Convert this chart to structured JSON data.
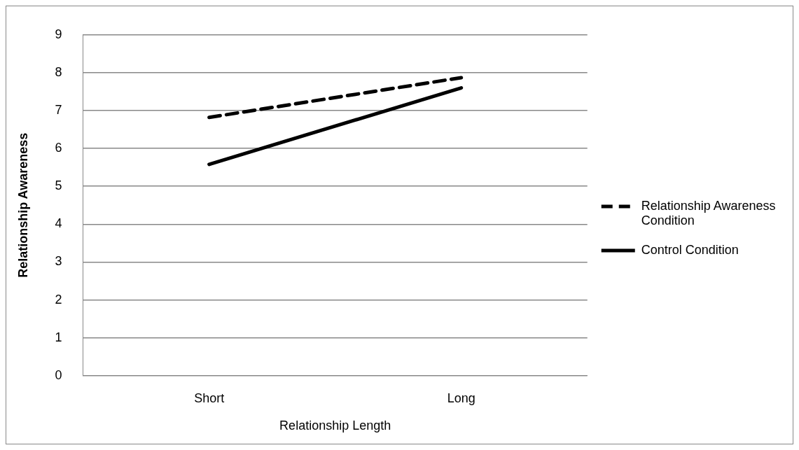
{
  "chart_data": {
    "type": "line",
    "xlabel": "Relationship Length",
    "ylabel": "Relationship Awareness",
    "categories": [
      "Short",
      "Long"
    ],
    "series": [
      {
        "name": "Relationship Awareness Condition",
        "color": "#000000",
        "line_style": "dashed",
        "values": [
          6.82,
          7.87
        ]
      },
      {
        "name": "Control Condition",
        "color": "#000000",
        "line_style": "solid",
        "values": [
          5.58,
          7.6
        ]
      }
    ],
    "ylim": [
      0,
      9
    ],
    "yticks": [
      0,
      1,
      2,
      3,
      4,
      5,
      6,
      7,
      8,
      9
    ],
    "grid": "y",
    "legend": "right",
    "marker": "none"
  }
}
